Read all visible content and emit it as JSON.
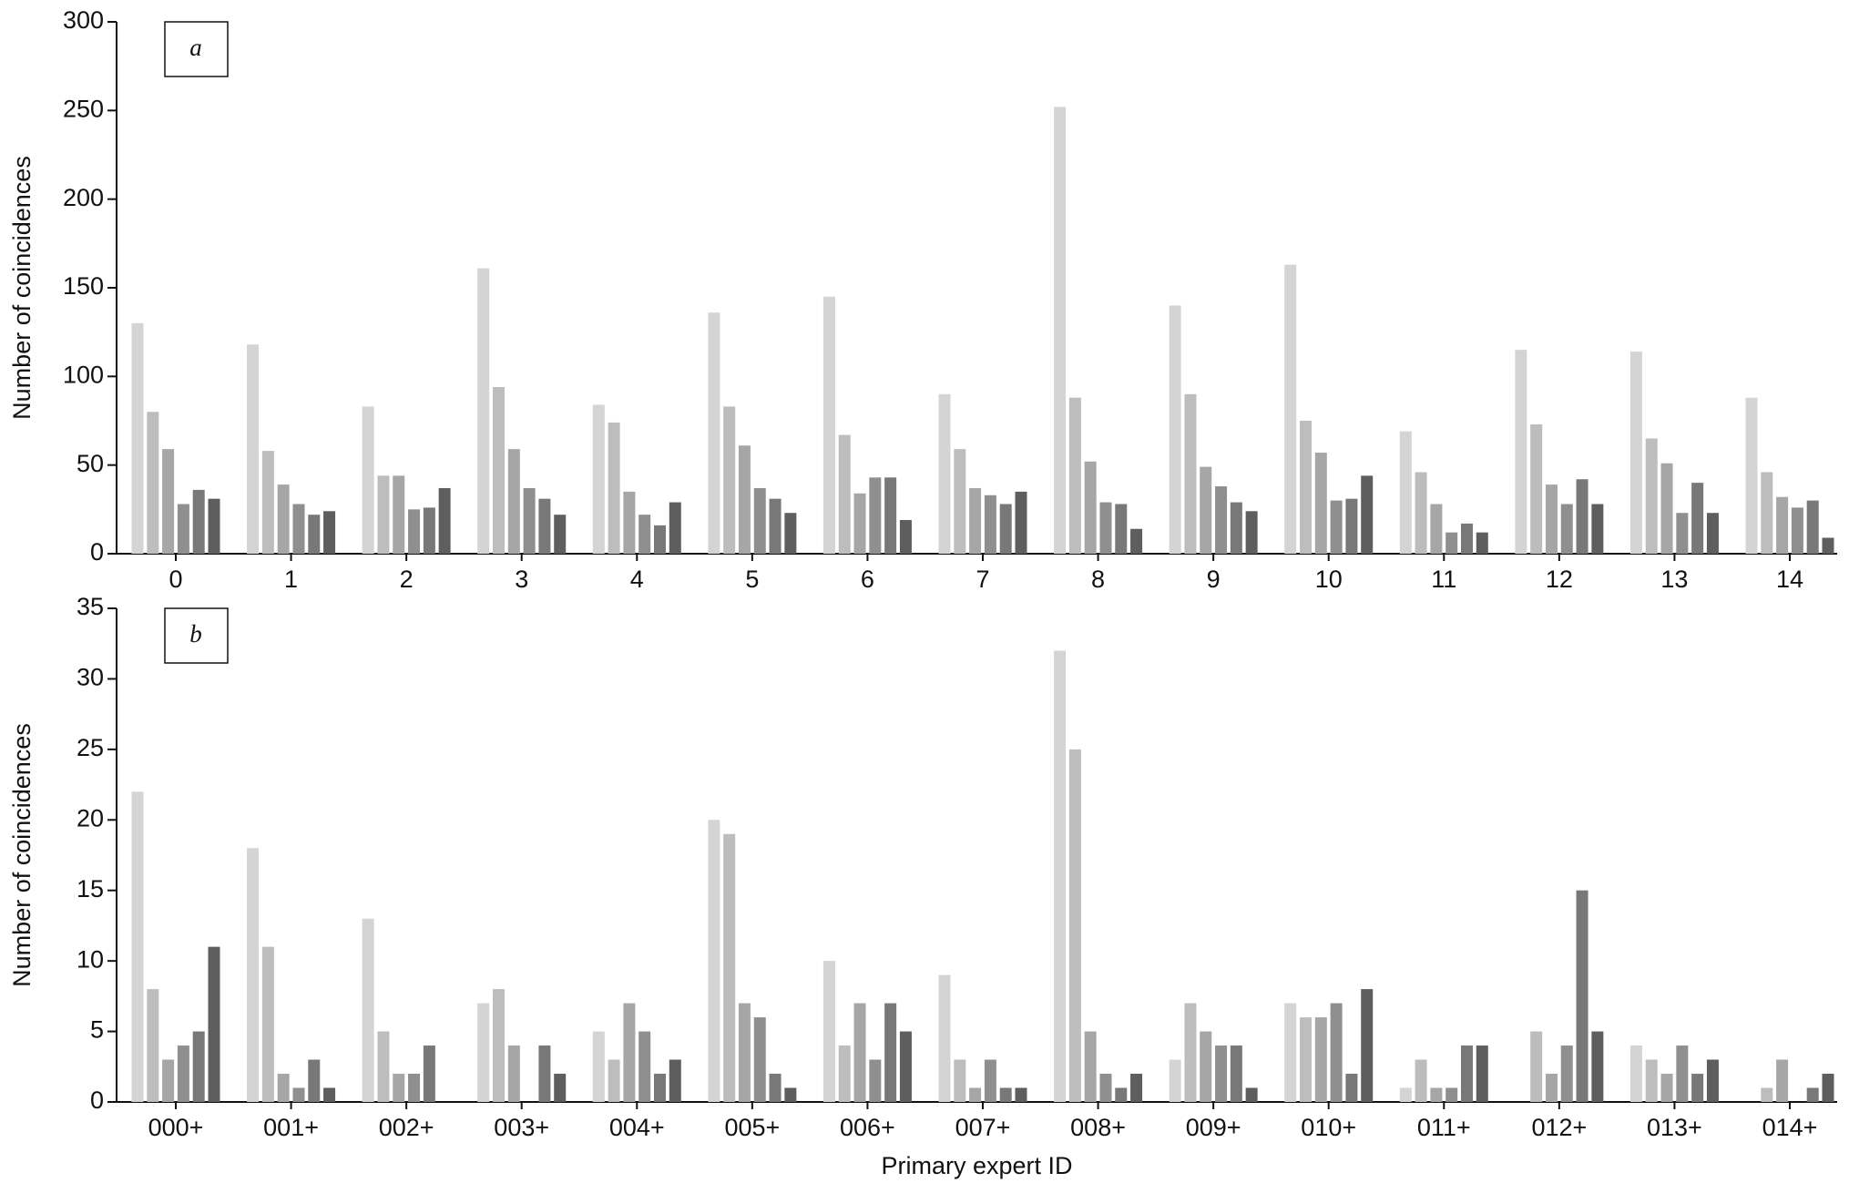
{
  "chart_data": [
    {
      "type": "bar",
      "panel_label": "a",
      "ylabel": "Number of coincidences",
      "categories": [
        "0",
        "1",
        "2",
        "3",
        "4",
        "5",
        "6",
        "7",
        "8",
        "9",
        "10",
        "11",
        "12",
        "13",
        "14"
      ],
      "series": [
        {
          "color": "#d4d4d4",
          "values": [
            130,
            118,
            83,
            161,
            84,
            136,
            145,
            90,
            252,
            140,
            163,
            69,
            115,
            114,
            88
          ]
        },
        {
          "color": "#bdbdbd",
          "values": [
            80,
            58,
            44,
            94,
            74,
            83,
            67,
            59,
            88,
            90,
            75,
            46,
            73,
            65,
            46
          ]
        },
        {
          "color": "#a6a6a6",
          "values": [
            59,
            39,
            44,
            59,
            35,
            61,
            34,
            37,
            52,
            49,
            57,
            28,
            39,
            51,
            32
          ]
        },
        {
          "color": "#8f8f8f",
          "values": [
            28,
            28,
            25,
            37,
            22,
            37,
            43,
            33,
            29,
            38,
            30,
            12,
            28,
            23,
            26
          ]
        },
        {
          "color": "#787878",
          "values": [
            36,
            22,
            26,
            31,
            16,
            31,
            43,
            28,
            28,
            29,
            31,
            17,
            42,
            40,
            30
          ]
        },
        {
          "color": "#5e5e5e",
          "values": [
            31,
            24,
            37,
            22,
            29,
            23,
            19,
            35,
            14,
            24,
            44,
            12,
            28,
            23,
            9
          ]
        }
      ],
      "ylim": [
        0,
        300
      ],
      "yticks": [
        0,
        50,
        100,
        150,
        200,
        250,
        300
      ],
      "grid": false
    },
    {
      "type": "bar",
      "panel_label": "b",
      "ylabel": "Number of coincidences",
      "xlabel": "Primary expert ID",
      "categories": [
        "000+",
        "001+",
        "002+",
        "003+",
        "004+",
        "005+",
        "006+",
        "007+",
        "008+",
        "009+",
        "010+",
        "011+",
        "012+",
        "013+",
        "014+"
      ],
      "series": [
        {
          "color": "#d4d4d4",
          "values": [
            22,
            18,
            13,
            7,
            5,
            20,
            10,
            9,
            32,
            3,
            7,
            1,
            0,
            4,
            0
          ]
        },
        {
          "color": "#bdbdbd",
          "values": [
            8,
            11,
            5,
            8,
            3,
            19,
            4,
            3,
            25,
            7,
            6,
            3,
            5,
            3,
            1
          ]
        },
        {
          "color": "#a6a6a6",
          "values": [
            3,
            2,
            2,
            4,
            7,
            7,
            7,
            1,
            5,
            5,
            6,
            1,
            2,
            2,
            3
          ]
        },
        {
          "color": "#8f8f8f",
          "values": [
            4,
            1,
            2,
            0,
            5,
            6,
            3,
            3,
            2,
            4,
            7,
            1,
            4,
            4,
            0
          ]
        },
        {
          "color": "#787878",
          "values": [
            5,
            3,
            4,
            4,
            2,
            2,
            7,
            1,
            1,
            4,
            2,
            4,
            15,
            2,
            1
          ]
        },
        {
          "color": "#5e5e5e",
          "values": [
            11,
            1,
            0,
            2,
            3,
            1,
            5,
            1,
            2,
            1,
            8,
            4,
            5,
            3,
            2
          ]
        }
      ],
      "ylim": [
        0,
        35
      ],
      "yticks": [
        0,
        5,
        10,
        15,
        20,
        25,
        30,
        35
      ],
      "grid": false
    }
  ]
}
